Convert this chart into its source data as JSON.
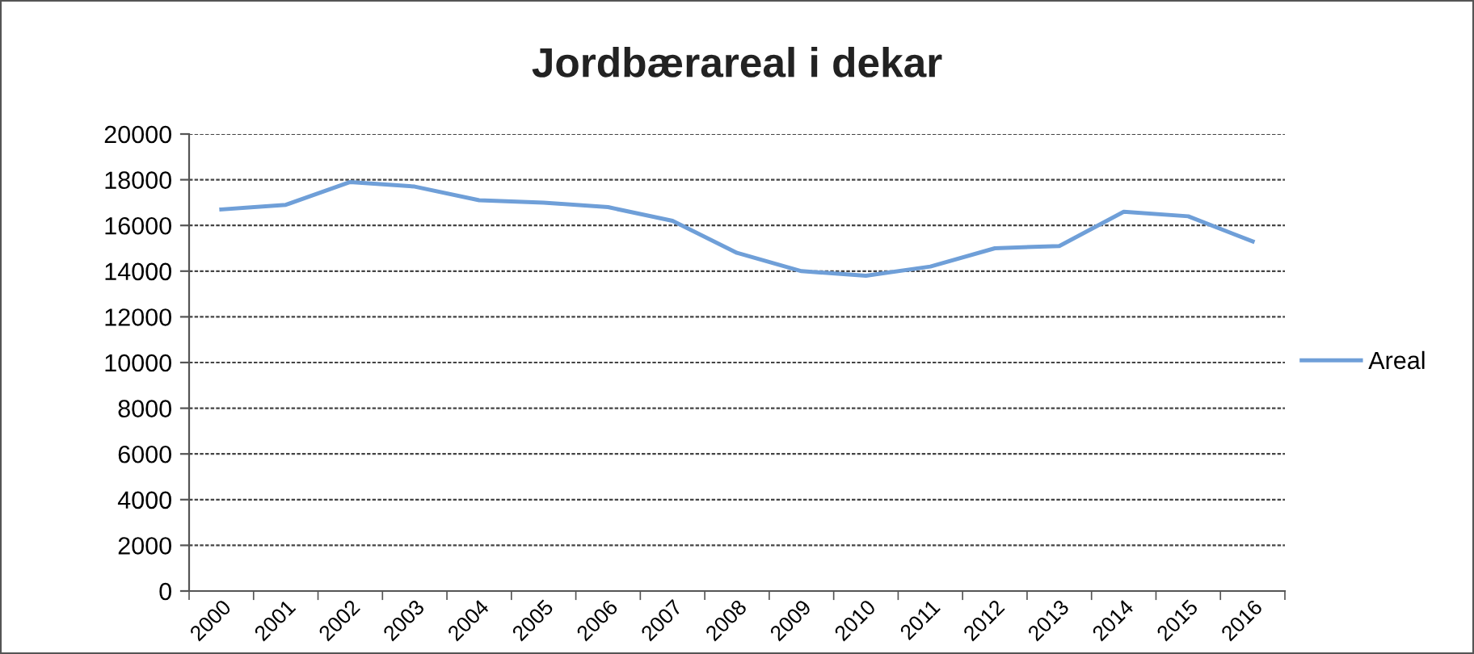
{
  "chart_data": {
    "type": "line",
    "title": "Jordbærareal i dekar",
    "categories": [
      "2000",
      "2001",
      "2002",
      "2003",
      "2004",
      "2005",
      "2006",
      "2007",
      "2008",
      "2009",
      "2010",
      "2011",
      "2012",
      "2013",
      "2014",
      "2015",
      "2016"
    ],
    "series": [
      {
        "name": "Areal",
        "color": "#6f9fd8",
        "values": [
          16700,
          16900,
          17900,
          17700,
          17100,
          17000,
          16800,
          16200,
          14800,
          14000,
          13800,
          14200,
          15000,
          15100,
          16600,
          16400,
          15300
        ]
      }
    ],
    "ylim": [
      0,
      20000
    ],
    "yticks": [
      0,
      2000,
      4000,
      6000,
      8000,
      10000,
      12000,
      14000,
      16000,
      18000,
      20000
    ],
    "grid": "y",
    "legend": "right",
    "marker": "none",
    "line_style": "solid"
  }
}
